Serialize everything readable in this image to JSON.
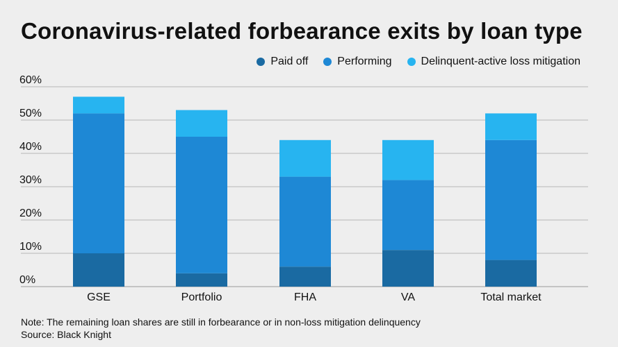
{
  "title": "Coronavirus-related forbearance exits by loan type",
  "legend": [
    {
      "label": "Paid off",
      "color": "#1a6aa2"
    },
    {
      "label": "Performing",
      "color": "#1e88d5"
    },
    {
      "label": "Delinquent-active loss mitigation",
      "color": "#27b4f0"
    }
  ],
  "chart_data": {
    "type": "bar",
    "stacked": true,
    "title": "Coronavirus-related forbearance exits by loan type",
    "categories": [
      "GSE",
      "Portfolio",
      "FHA",
      "VA",
      "Total market"
    ],
    "series": [
      {
        "name": "Paid off",
        "values": [
          10,
          4,
          6,
          11,
          8
        ],
        "color": "#1a6aa2"
      },
      {
        "name": "Performing",
        "values": [
          42,
          41,
          27,
          21,
          36
        ],
        "color": "#1e88d5"
      },
      {
        "name": "Delinquent-active loss mitigation",
        "values": [
          5,
          8,
          11,
          12,
          8
        ],
        "color": "#27b4f0"
      }
    ],
    "yticks": [
      0,
      10,
      20,
      30,
      40,
      50,
      60
    ],
    "ytick_labels": [
      "0%",
      "10%",
      "20%",
      "30%",
      "40%",
      "50%",
      "60%"
    ],
    "ylim": [
      0,
      60
    ],
    "xlabel": "",
    "ylabel": "",
    "grid": true,
    "legend_position": "top-right"
  },
  "footer": {
    "note": "Note: The remaining loan shares are still in forbearance or in non-loss mitigation delinquency",
    "source": "Source: Black Knight"
  }
}
